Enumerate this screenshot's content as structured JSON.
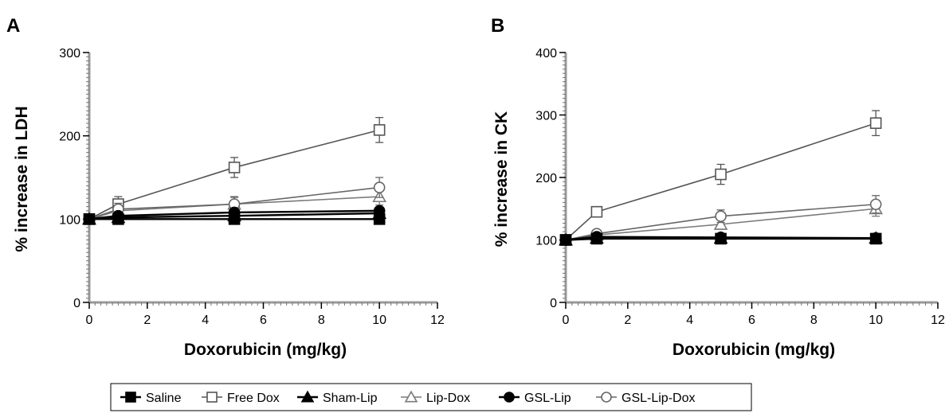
{
  "legend": {
    "items": [
      {
        "label": "Saline",
        "marker": "square",
        "filled": true
      },
      {
        "label": "Free Dox",
        "marker": "square",
        "filled": false
      },
      {
        "label": "Sham-Lip",
        "marker": "triangle",
        "filled": true
      },
      {
        "label": "Lip-Dox",
        "marker": "triangle",
        "filled": false
      },
      {
        "label": "GSL-Lip",
        "marker": "circle",
        "filled": true
      },
      {
        "label": "GSL-Lip-Dox",
        "marker": "circle",
        "filled": false
      }
    ]
  },
  "chart_data": [
    {
      "type": "line",
      "panel": "A",
      "xlabel": "Doxorubicin (mg/kg)",
      "ylabel": "% increase in LDH",
      "xlim": [
        0,
        12
      ],
      "ylim": [
        0,
        300
      ],
      "xticks": [
        "0",
        "2",
        "4",
        "6",
        "8",
        "10",
        "12"
      ],
      "yticks": [
        "0",
        "100",
        "200",
        "300"
      ],
      "x": [
        0,
        1,
        5,
        10
      ],
      "series": [
        {
          "name": "Saline",
          "values": [
            100,
            100,
            100,
            100
          ],
          "err": [
            3,
            3,
            3,
            3
          ]
        },
        {
          "name": "Free Dox",
          "values": [
            100,
            118,
            162,
            207
          ],
          "err": [
            5,
            9,
            12,
            15
          ]
        },
        {
          "name": "Sham-Lip",
          "values": [
            100,
            102,
            104,
            107
          ],
          "err": [
            3,
            3,
            4,
            4
          ]
        },
        {
          "name": "Lip-Dox",
          "values": [
            100,
            110,
            118,
            127
          ],
          "err": [
            4,
            6,
            8,
            10
          ]
        },
        {
          "name": "GSL-Lip",
          "values": [
            100,
            104,
            108,
            110
          ],
          "err": [
            3,
            3,
            4,
            4
          ]
        },
        {
          "name": "GSL-Lip-Dox",
          "values": [
            100,
            112,
            118,
            138
          ],
          "err": [
            4,
            7,
            9,
            12
          ]
        }
      ]
    },
    {
      "type": "line",
      "panel": "B",
      "xlabel": "Doxorubicin (mg/kg)",
      "ylabel": "% increase in CK",
      "xlim": [
        0,
        12
      ],
      "ylim": [
        0,
        400
      ],
      "xticks": [
        "0",
        "2",
        "4",
        "6",
        "8",
        "10",
        "12"
      ],
      "yticks": [
        "0",
        "100",
        "200",
        "300",
        "400"
      ],
      "x": [
        0,
        1,
        5,
        10
      ],
      "series": [
        {
          "name": "Saline",
          "values": [
            100,
            102,
            102,
            102
          ],
          "err": [
            3,
            3,
            3,
            3
          ]
        },
        {
          "name": "Free Dox",
          "values": [
            100,
            145,
            205,
            287
          ],
          "err": [
            5,
            8,
            16,
            20
          ]
        },
        {
          "name": "Sham-Lip",
          "values": [
            100,
            103,
            103,
            103
          ],
          "err": [
            3,
            3,
            3,
            3
          ]
        },
        {
          "name": "Lip-Dox",
          "values": [
            100,
            108,
            125,
            150
          ],
          "err": [
            4,
            5,
            8,
            12
          ]
        },
        {
          "name": "GSL-Lip",
          "values": [
            100,
            105,
            104,
            103
          ],
          "err": [
            3,
            3,
            3,
            3
          ]
        },
        {
          "name": "GSL-Lip-Dox",
          "values": [
            100,
            110,
            138,
            157
          ],
          "err": [
            4,
            6,
            10,
            14
          ]
        }
      ]
    }
  ],
  "colors": {
    "Saline": "#000000",
    "Free Dox": "#555555",
    "Sham-Lip": "#000000",
    "Lip-Dox": "#7a7a7a",
    "GSL-Lip": "#000000",
    "GSL-Lip-Dox": "#666666",
    "axis": "#444444",
    "grid": "#aaaaaa"
  }
}
